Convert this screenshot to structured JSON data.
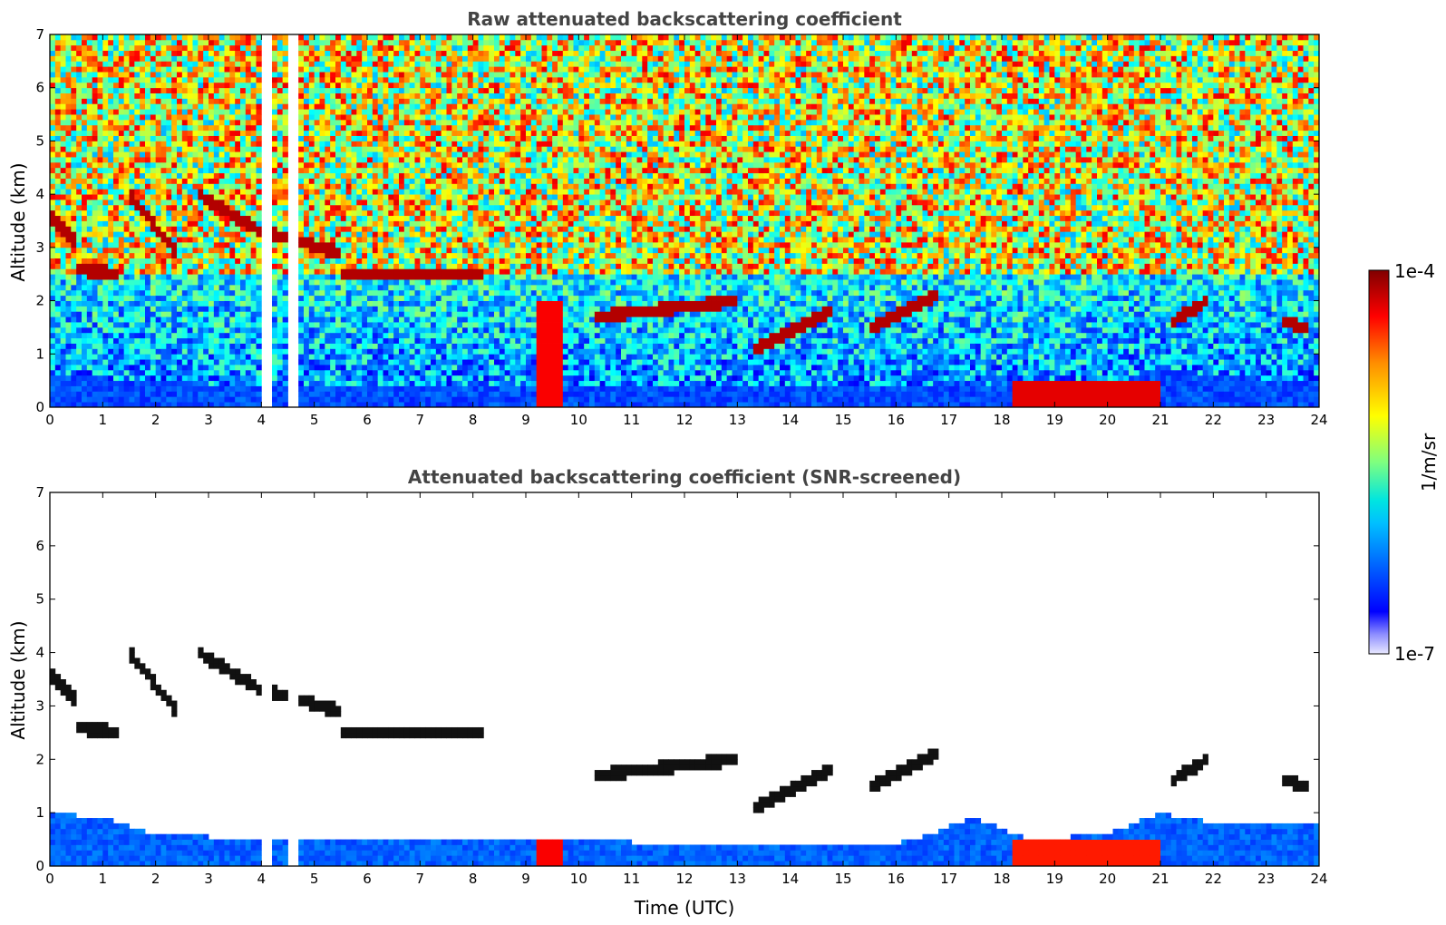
{
  "figure": {
    "colorbar": {
      "max_label": "1e-4",
      "min_label": "1e-7",
      "unit_label": "1/m/sr",
      "vmin": 1e-07,
      "vmax": 0.0001,
      "scale": "log",
      "colormap": "jet"
    },
    "xlabel_bottom": "Time (UTC)"
  },
  "chart_data": [
    {
      "type": "heatmap",
      "title": "Raw attenuated backscattering coefficient",
      "xlabel": "",
      "ylabel": "Altitude (km)",
      "xlim": [
        0,
        24
      ],
      "ylim": [
        0,
        7
      ],
      "xticks": [
        "0",
        "1",
        "2",
        "3",
        "4",
        "5",
        "6",
        "7",
        "8",
        "9",
        "10",
        "11",
        "12",
        "13",
        "14",
        "15",
        "16",
        "17",
        "18",
        "19",
        "20",
        "21",
        "22",
        "23",
        "24"
      ],
      "yticks": [
        "0",
        "1",
        "2",
        "3",
        "4",
        "5",
        "6",
        "7"
      ],
      "data_gaps_utc": [
        [
          4.05,
          4.2
        ],
        [
          4.55,
          4.65
        ]
      ],
      "cloud_layers": [
        {
          "time": [
            0.0,
            0.5
          ],
          "altitude_km": [
            3.6,
            3.1
          ]
        },
        {
          "time": [
            0.5,
            1.3
          ],
          "altitude_km": [
            2.6,
            2.5
          ]
        },
        {
          "time": [
            1.5,
            2.4
          ],
          "altitude_km": [
            4.0,
            2.9
          ]
        },
        {
          "time": [
            2.8,
            4.0
          ],
          "altitude_km": [
            4.0,
            3.3
          ]
        },
        {
          "time": [
            4.0,
            5.5
          ],
          "altitude_km": [
            3.3,
            2.9
          ]
        },
        {
          "time": [
            5.5,
            8.2
          ],
          "altitude_km": [
            2.5,
            2.5
          ]
        },
        {
          "time": [
            10.3,
            13.0
          ],
          "altitude_km": [
            1.7,
            2.0
          ]
        },
        {
          "time": [
            13.3,
            14.8
          ],
          "altitude_km": [
            1.1,
            1.8
          ]
        },
        {
          "time": [
            15.5,
            16.8
          ],
          "altitude_km": [
            1.5,
            2.1
          ]
        },
        {
          "time": [
            21.2,
            21.9
          ],
          "altitude_km": [
            1.6,
            2.0
          ]
        },
        {
          "time": [
            23.3,
            23.8
          ],
          "altitude_km": [
            1.6,
            1.5
          ]
        }
      ],
      "boundary_layer_top_km": {
        "time": [
          0,
          2,
          4,
          6,
          8,
          10,
          12,
          14,
          16,
          17.5,
          18.5,
          20,
          21,
          22,
          23.8
        ],
        "altitude_km": [
          0.6,
          0.5,
          0.4,
          0.4,
          0.4,
          0.4,
          0.4,
          0.4,
          0.4,
          0.5,
          0.2,
          0.4,
          0.8,
          0.6,
          0.5
        ]
      },
      "noise_dominated_above_km": 2.5
    },
    {
      "type": "heatmap",
      "title": "Attenuated backscattering coefficient (SNR-screened)",
      "xlabel": "Time (UTC)",
      "ylabel": "Altitude (km)",
      "xlim": [
        0,
        24
      ],
      "ylim": [
        0,
        7
      ],
      "xticks": [
        "0",
        "1",
        "2",
        "3",
        "4",
        "5",
        "6",
        "7",
        "8",
        "9",
        "10",
        "11",
        "12",
        "13",
        "14",
        "15",
        "16",
        "17",
        "18",
        "19",
        "20",
        "21",
        "22",
        "23",
        "24"
      ],
      "yticks": [
        "0",
        "1",
        "2",
        "3",
        "4",
        "5",
        "6",
        "7"
      ],
      "screened_signal_top_km": {
        "time": [
          0,
          1,
          2,
          4,
          6,
          8,
          10,
          12,
          14,
          16,
          17.5,
          18.5,
          20,
          21,
          22,
          23.8
        ],
        "altitude_km": [
          1.0,
          0.9,
          0.6,
          0.5,
          0.5,
          0.5,
          0.5,
          0.4,
          0.4,
          0.4,
          0.9,
          0.5,
          0.6,
          1.0,
          0.8,
          0.8
        ]
      }
    }
  ]
}
